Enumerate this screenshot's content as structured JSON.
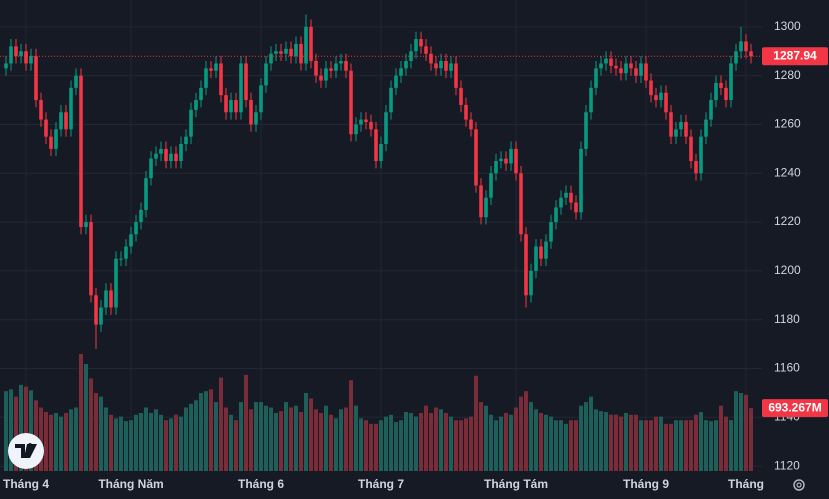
{
  "chart_data": {
    "type": "candlestick",
    "up_color": "#089981",
    "down_color": "#f23645",
    "volume_up_color": "#1e5f59",
    "volume_down_color": "#7a2d38",
    "ylim": [
      1118,
      1311
    ],
    "yticks": [
      1120,
      1140,
      1160,
      1180,
      1200,
      1220,
      1240,
      1260,
      1280,
      1300
    ],
    "grid": true,
    "categories": [
      null,
      null,
      null,
      null,
      "Tháng 4",
      null,
      null,
      null,
      null,
      null,
      null,
      null,
      null,
      null,
      null,
      null,
      null,
      null,
      null,
      null,
      null,
      null,
      null,
      null,
      null,
      "Tháng Năm",
      null,
      null,
      null,
      null,
      null,
      null,
      null,
      null,
      null,
      null,
      null,
      null,
      null,
      null,
      null,
      null,
      null,
      null,
      null,
      null,
      null,
      null,
      null,
      null,
      null,
      "Tháng 6",
      null,
      null,
      null,
      null,
      null,
      null,
      null,
      null,
      null,
      null,
      null,
      null,
      null,
      null,
      null,
      null,
      null,
      null,
      null,
      null,
      null,
      null,
      null,
      "Tháng 7",
      null,
      null,
      null,
      null,
      null,
      null,
      null,
      null,
      null,
      null,
      null,
      null,
      null,
      null,
      null,
      null,
      null,
      null,
      null,
      null,
      null,
      null,
      null,
      null,
      null,
      null,
      "Tháng Tám",
      null,
      null,
      null,
      null,
      null,
      null,
      null,
      null,
      null,
      null,
      null,
      null,
      null,
      null,
      null,
      null,
      null,
      null,
      null,
      null,
      null,
      null,
      null,
      null,
      null,
      "Tháng 9",
      null,
      null,
      null,
      null,
      null,
      null,
      null,
      null,
      null,
      null,
      null,
      null,
      null,
      null,
      null,
      null,
      null,
      null,
      null,
      "Tháng",
      null
    ],
    "open": [
      1283,
      1285,
      1292,
      1288,
      1290,
      1285,
      1288,
      1270,
      1262,
      1255,
      1250,
      1258,
      1265,
      1258,
      1275,
      1280,
      1218,
      1220,
      1190,
      1178,
      1185,
      1192,
      1185,
      1205,
      1205,
      1210,
      1215,
      1220,
      1225,
      1238,
      1246,
      1248,
      1250,
      1245,
      1248,
      1245,
      1252,
      1255,
      1266,
      1270,
      1275,
      1283,
      1282,
      1285,
      1272,
      1265,
      1270,
      1265,
      1285,
      1270,
      1260,
      1265,
      1276,
      1285,
      1289,
      1290,
      1289,
      1291,
      1288,
      1293,
      1285,
      1300,
      1286,
      1280,
      1278,
      1283,
      1282,
      1285,
      1286,
      1282,
      1256,
      1260,
      1262,
      1261,
      1258,
      1245,
      1252,
      1265,
      1275,
      1280,
      1283,
      1286,
      1290,
      1295,
      1292,
      1289,
      1285,
      1283,
      1286,
      1282,
      1285,
      1275,
      1268,
      1262,
      1258,
      1235,
      1222,
      1230,
      1240,
      1245,
      1246,
      1244,
      1250,
      1240,
      1215,
      1190,
      1200,
      1210,
      1205,
      1212,
      1220,
      1226,
      1230,
      1232,
      1228,
      1224,
      1250,
      1265,
      1275,
      1283,
      1285,
      1287,
      1284,
      1283,
      1281,
      1285,
      1283,
      1280,
      1285,
      1278,
      1272,
      1270,
      1273,
      1265,
      1255,
      1258,
      1261,
      1255,
      1245,
      1240,
      1255,
      1262,
      1270,
      1277,
      1275,
      1270,
      1285,
      1290,
      1294,
      1290
    ],
    "high": [
      1288,
      1295,
      1295,
      1293,
      1293,
      1291,
      1291,
      1273,
      1265,
      1258,
      1261,
      1268,
      1268,
      1278,
      1283,
      1283,
      1223,
      1223,
      1193,
      1188,
      1195,
      1195,
      1208,
      1208,
      1213,
      1218,
      1223,
      1228,
      1241,
      1249,
      1251,
      1253,
      1253,
      1251,
      1251,
      1255,
      1258,
      1269,
      1273,
      1278,
      1286,
      1286,
      1288,
      1288,
      1275,
      1273,
      1273,
      1288,
      1288,
      1273,
      1268,
      1279,
      1288,
      1292,
      1293,
      1293,
      1294,
      1294,
      1296,
      1296,
      1305,
      1303,
      1289,
      1283,
      1286,
      1286,
      1288,
      1289,
      1289,
      1285,
      1263,
      1265,
      1265,
      1264,
      1261,
      1255,
      1268,
      1278,
      1283,
      1286,
      1289,
      1293,
      1298,
      1298,
      1295,
      1292,
      1288,
      1289,
      1289,
      1288,
      1288,
      1278,
      1271,
      1265,
      1261,
      1238,
      1233,
      1243,
      1248,
      1249,
      1249,
      1253,
      1253,
      1243,
      1218,
      1203,
      1213,
      1213,
      1215,
      1223,
      1229,
      1233,
      1235,
      1235,
      1231,
      1253,
      1268,
      1278,
      1286,
      1288,
      1290,
      1290,
      1287,
      1286,
      1288,
      1288,
      1286,
      1288,
      1288,
      1281,
      1275,
      1276,
      1276,
      1268,
      1261,
      1264,
      1264,
      1258,
      1248,
      1258,
      1265,
      1273,
      1280,
      1280,
      1278,
      1288,
      1293,
      1300,
      1297,
      1293
    ],
    "low": [
      1280,
      1282,
      1285,
      1285,
      1282,
      1282,
      1267,
      1259,
      1252,
      1247,
      1247,
      1255,
      1255,
      1255,
      1272,
      1215,
      1215,
      1187,
      1168,
      1175,
      1182,
      1182,
      1182,
      1202,
      1202,
      1207,
      1212,
      1217,
      1222,
      1235,
      1243,
      1245,
      1242,
      1242,
      1242,
      1242,
      1249,
      1252,
      1263,
      1267,
      1272,
      1279,
      1279,
      1269,
      1262,
      1262,
      1262,
      1262,
      1267,
      1257,
      1257,
      1262,
      1273,
      1282,
      1286,
      1286,
      1286,
      1285,
      1285,
      1282,
      1282,
      1283,
      1277,
      1275,
      1275,
      1279,
      1279,
      1282,
      1279,
      1253,
      1253,
      1257,
      1258,
      1255,
      1242,
      1242,
      1249,
      1262,
      1272,
      1277,
      1280,
      1283,
      1287,
      1289,
      1286,
      1282,
      1280,
      1280,
      1279,
      1279,
      1272,
      1265,
      1259,
      1255,
      1232,
      1219,
      1219,
      1227,
      1237,
      1242,
      1241,
      1241,
      1237,
      1212,
      1185,
      1187,
      1197,
      1202,
      1202,
      1209,
      1217,
      1223,
      1227,
      1225,
      1221,
      1221,
      1247,
      1262,
      1272,
      1280,
      1282,
      1281,
      1280,
      1278,
      1278,
      1280,
      1277,
      1277,
      1275,
      1269,
      1267,
      1267,
      1262,
      1252,
      1252,
      1255,
      1252,
      1242,
      1237,
      1237,
      1252,
      1259,
      1267,
      1272,
      1267,
      1267,
      1282,
      1287,
      1287,
      1285
    ],
    "close": [
      1285,
      1292,
      1288,
      1290,
      1285,
      1288,
      1270,
      1262,
      1255,
      1250,
      1258,
      1265,
      1258,
      1275,
      1280,
      1218,
      1220,
      1190,
      1178,
      1185,
      1192,
      1185,
      1205,
      1205,
      1210,
      1215,
      1220,
      1225,
      1238,
      1246,
      1248,
      1250,
      1245,
      1248,
      1245,
      1252,
      1255,
      1266,
      1270,
      1275,
      1283,
      1282,
      1285,
      1272,
      1265,
      1270,
      1265,
      1285,
      1270,
      1260,
      1265,
      1276,
      1285,
      1289,
      1290,
      1289,
      1291,
      1288,
      1293,
      1285,
      1300,
      1286,
      1280,
      1278,
      1283,
      1282,
      1285,
      1286,
      1282,
      1256,
      1260,
      1262,
      1261,
      1258,
      1245,
      1252,
      1265,
      1275,
      1280,
      1283,
      1286,
      1290,
      1295,
      1292,
      1289,
      1285,
      1283,
      1286,
      1282,
      1285,
      1275,
      1268,
      1262,
      1258,
      1235,
      1222,
      1230,
      1240,
      1245,
      1246,
      1244,
      1250,
      1240,
      1215,
      1190,
      1200,
      1210,
      1205,
      1212,
      1220,
      1226,
      1230,
      1232,
      1228,
      1224,
      1250,
      1265,
      1275,
      1283,
      1285,
      1287,
      1284,
      1283,
      1281,
      1285,
      1283,
      1280,
      1285,
      1278,
      1272,
      1270,
      1273,
      1265,
      1255,
      1258,
      1261,
      1255,
      1245,
      1240,
      1255,
      1262,
      1270,
      1277,
      1275,
      1270,
      1285,
      1290,
      1294,
      1290,
      1287.94
    ],
    "volume": {
      "values": [
        880,
        900,
        820,
        950,
        930,
        890,
        780,
        700,
        650,
        620,
        640,
        600,
        640,
        680,
        700,
        1290,
        1180,
        1020,
        860,
        820,
        700,
        620,
        580,
        600,
        550,
        560,
        620,
        640,
        700,
        640,
        680,
        620,
        560,
        580,
        620,
        600,
        700,
        740,
        780,
        860,
        880,
        900,
        760,
        1030,
        700,
        620,
        560,
        760,
        1060,
        680,
        760,
        760,
        720,
        700,
        640,
        660,
        760,
        700,
        720,
        650,
        860,
        800,
        680,
        640,
        720,
        620,
        580,
        680,
        700,
        1000,
        720,
        580,
        560,
        520,
        520,
        560,
        600,
        620,
        540,
        560,
        650,
        640,
        600,
        640,
        720,
        640,
        700,
        680,
        640,
        600,
        560,
        560,
        580,
        600,
        1050,
        760,
        720,
        620,
        560,
        600,
        640,
        620,
        700,
        820,
        880,
        760,
        680,
        640,
        620,
        600,
        560,
        560,
        520,
        560,
        560,
        720,
        760,
        820,
        680,
        660,
        650,
        620,
        620,
        600,
        640,
        620,
        620,
        560,
        560,
        560,
        600,
        600,
        520,
        520,
        560,
        560,
        560,
        560,
        620,
        650,
        560,
        550,
        560,
        720,
        600,
        560,
        880,
        860,
        840,
        693.267
      ],
      "last_value_label": "693.267M"
    }
  }
}
